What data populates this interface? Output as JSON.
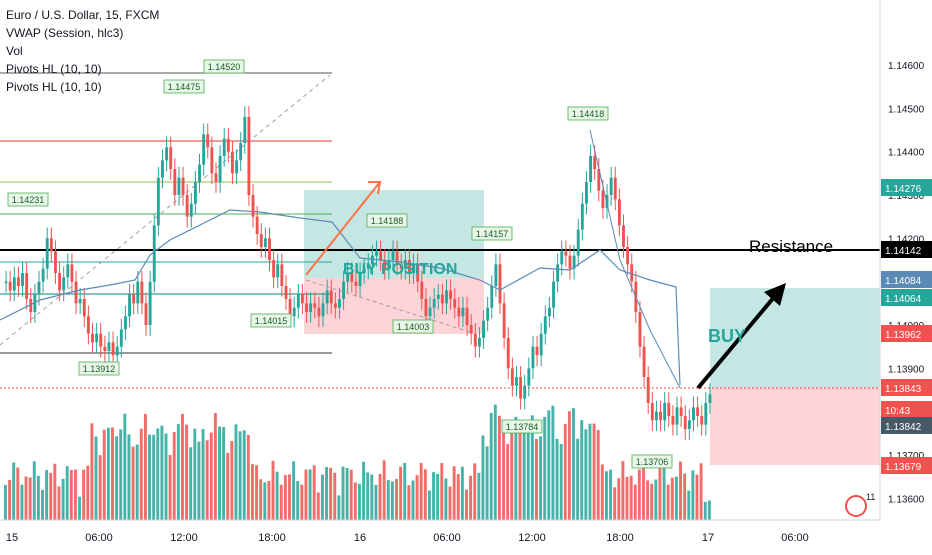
{
  "legend": {
    "symbol": "Euro / U.S. Dollar, 15, FXCM",
    "vwap": "VWAP (Session, hlc3)",
    "vol": "Vol",
    "pivots1": "Pivots HL (10, 10)",
    "pivots2": "Pivots HL (10, 10)"
  },
  "labels": {
    "buy_position": "BUY POSITION",
    "resistance": "Resistance",
    "buy": "BUY",
    "alert_count": "11"
  },
  "colors": {
    "up": "#26a69a",
    "down": "#ef5350",
    "vwap": "#5b8bb5",
    "resistance": "#000000",
    "red_level": "#e53935",
    "green_level": "#8bc34a",
    "target_zone": "#b2dfdb",
    "stop_zone": "#ffcdd2",
    "arrow_orange": "#ff7043"
  },
  "chart_data": {
    "type": "candlestick",
    "x_ticks": [
      "15",
      "06:00",
      "12:00",
      "18:00",
      "16",
      "06:00",
      "12:00",
      "18:00",
      "17",
      "06:00"
    ],
    "y_ticks": [
      "1.14600",
      "1.14500",
      "1.14400",
      "1.14300",
      "1.14200",
      "1.14100",
      "1.14000",
      "1.13900",
      "1.13800",
      "1.13700",
      "1.13600"
    ],
    "ylim": [
      1.1355,
      1.1475
    ],
    "price_tags": [
      {
        "value": 1.14276,
        "label": "1.14276",
        "color": "#26a69a"
      },
      {
        "value": 1.14142,
        "label": "1.14142",
        "color": "#000000"
      },
      {
        "value": 1.14084,
        "label": "1.14084",
        "color": "#5b8bb5"
      },
      {
        "value": 1.14064,
        "label": "1.14064",
        "color": "#26a69a"
      },
      {
        "value": 1.13962,
        "label": "1.13962",
        "color": "#ef5350"
      },
      {
        "value": 1.13843,
        "label": "1.13843",
        "color": "#ef5350"
      },
      {
        "value": 1.13805,
        "label": "10:43",
        "color": "#ef5350"
      },
      {
        "value": 1.13842,
        "label": "1.13842",
        "color": "#455a64"
      },
      {
        "value": 1.13679,
        "label": "1.13679",
        "color": "#ef5350"
      }
    ],
    "pivots": [
      {
        "value": 1.1452,
        "label": "1.14520",
        "kind": "high"
      },
      {
        "value": 1.14475,
        "label": "1.14475",
        "kind": "high"
      },
      {
        "value": 1.14231,
        "label": "1.14231",
        "kind": "high"
      },
      {
        "value": 1.14188,
        "label": "1.14188",
        "kind": "high"
      },
      {
        "value": 1.14157,
        "label": "1.14157",
        "kind": "high"
      },
      {
        "value": 1.14418,
        "label": "1.14418",
        "kind": "high"
      },
      {
        "value": 1.13912,
        "label": "1.13912",
        "kind": "low"
      },
      {
        "value": 1.14015,
        "label": "1.14015",
        "kind": "low"
      },
      {
        "value": 1.14003,
        "label": "1.14003",
        "kind": "low"
      },
      {
        "value": 1.13784,
        "label": "1.13784",
        "kind": "low"
      },
      {
        "value": 1.13706,
        "label": "1.13706",
        "kind": "low"
      }
    ],
    "levels": {
      "resistance": 1.14142,
      "red": 1.1437,
      "green_top": 1.1428,
      "green_mid": 1.1422,
      "teal": 1.1411,
      "blue": 1.1405,
      "dark_low": 1.13912,
      "current": 1.13843
    },
    "candles_close": [
      1.141,
      1.1408,
      1.1411,
      1.1409,
      1.1412,
      1.1406,
      1.1403,
      1.1407,
      1.141,
      1.1413,
      1.142,
      1.1417,
      1.1412,
      1.1408,
      1.1411,
      1.1414,
      1.141,
      1.1405,
      1.1406,
      1.1402,
      1.1398,
      1.1396,
      1.1398,
      1.1395,
      1.1394,
      1.1396,
      1.1393,
      1.1395,
      1.1399,
      1.1402,
      1.1407,
      1.1405,
      1.141,
      1.1405,
      1.14,
      1.141,
      1.1423,
      1.1434,
      1.1438,
      1.1441,
      1.1436,
      1.143,
      1.1434,
      1.143,
      1.1425,
      1.1428,
      1.1433,
      1.1437,
      1.1444,
      1.1441,
      1.1435,
      1.1433,
      1.1439,
      1.1443,
      1.144,
      1.1435,
      1.1438,
      1.1442,
      1.1448,
      1.143,
      1.1425,
      1.1421,
      1.1418,
      1.142,
      1.1415,
      1.1411,
      1.1414,
      1.1409,
      1.1406,
      1.1402,
      1.1404,
      1.1407,
      1.1405,
      1.1403,
      1.1405,
      1.1404,
      1.1402,
      1.1405,
      1.1408,
      1.1405,
      1.1404,
      1.1406,
      1.141,
      1.1412,
      1.141,
      1.1409,
      1.1412,
      1.1413,
      1.1414,
      1.1416,
      1.1417,
      1.1415,
      1.1413,
      1.1415,
      1.1417,
      1.1414,
      1.1413,
      1.1415,
      1.1412,
      1.1414,
      1.141,
      1.1406,
      1.1402,
      1.1404,
      1.1406,
      1.1407,
      1.1405,
      1.1408,
      1.1406,
      1.1404,
      1.1402,
      1.1404,
      1.14,
      1.1398,
      1.1395,
      1.1397,
      1.1401,
      1.1404,
      1.1409,
      1.1414,
      1.1405,
      1.1397,
      1.139,
      1.1386,
      1.1388,
      1.1383,
      1.1386,
      1.139,
      1.1395,
      1.1393,
      1.1398,
      1.1402,
      1.1404,
      1.141,
      1.1414,
      1.1417,
      1.1416,
      1.1413,
      1.1416,
      1.1422,
      1.1428,
      1.1433,
      1.1439,
      1.1436,
      1.1431,
      1.1427,
      1.143,
      1.1434,
      1.1429,
      1.1423,
      1.1418,
      1.1414,
      1.141,
      1.1403,
      1.1395,
      1.1388,
      1.1382,
      1.1378,
      1.138,
      1.1378,
      1.1382,
      1.1379,
      1.1377,
      1.1381,
      1.1379,
      1.1376,
      1.1378,
      1.1381,
      1.1379,
      1.1377,
      1.1382,
      1.1384
    ],
    "volume_note": "volume histogram bars beneath price"
  }
}
